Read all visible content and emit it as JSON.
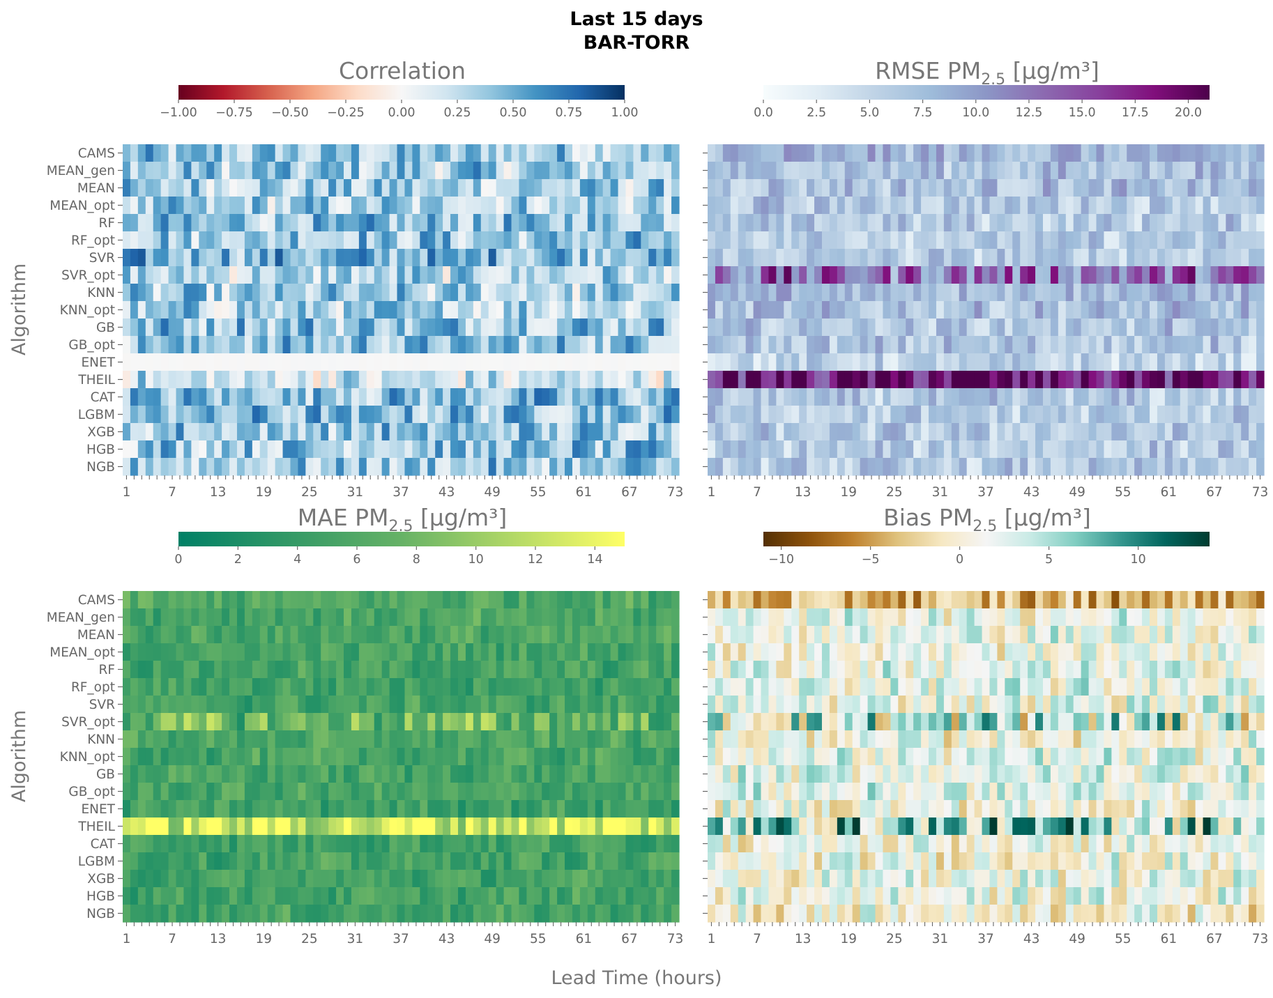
{
  "figure": {
    "title_line1": "Last 15 days",
    "title_line2": "BAR-TORR",
    "xlabel": "Lead Time (hours)",
    "ylabel": "Algorithm"
  },
  "chart_data": [
    {
      "type": "heatmap",
      "title": "Correlation",
      "colormap": "RdBu",
      "vmin": -1.0,
      "vmax": 1.0,
      "colorbar_ticks": [
        -1.0,
        -0.75,
        -0.5,
        -0.25,
        0.0,
        0.25,
        0.5,
        0.75,
        1.0
      ],
      "colorbar_tick_labels": [
        "−1.00",
        "−0.75",
        "−0.50",
        "−0.25",
        "0.00",
        "0.25",
        "0.50",
        "0.75",
        "1.00"
      ],
      "colors": [
        "#67001f",
        "#b2182b",
        "#d6604d",
        "#f4a582",
        "#fddbc7",
        "#f7f7f7",
        "#d1e5f0",
        "#92c5de",
        "#4393c3",
        "#2166ac",
        "#053061"
      ],
      "rows": [
        "CAMS",
        "MEAN_gen",
        "MEAN",
        "MEAN_opt",
        "RF",
        "RF_opt",
        "SVR",
        "SVR_opt",
        "KNN",
        "KNN_opt",
        "GB",
        "GB_opt",
        "ENET",
        "THEIL",
        "CAT",
        "LGBM",
        "XGB",
        "HGB",
        "NGB"
      ],
      "x_ticks": [
        "1",
        "7",
        "13",
        "19",
        "25",
        "31",
        "37",
        "43",
        "49",
        "55",
        "61",
        "67",
        "73"
      ],
      "x": {
        "start": 1,
        "end": 73
      },
      "row_means": [
        0.35,
        0.35,
        0.32,
        0.3,
        0.38,
        0.38,
        0.48,
        0.28,
        0.3,
        0.3,
        0.42,
        0.4,
        0.0,
        0.18,
        0.42,
        0.42,
        0.38,
        0.38,
        0.35
      ],
      "hot_rows": [],
      "special_rows": {
        "ENET": 0.0
      }
    },
    {
      "type": "heatmap",
      "title_main": "RMSE PM",
      "title_sub": "2.5",
      "title_unit": "[μg/m³]",
      "colormap": "BuPu",
      "vmin": 0.0,
      "vmax": 21.0,
      "colorbar_ticks": [
        0.0,
        2.5,
        5.0,
        7.5,
        10.0,
        12.5,
        15.0,
        17.5,
        20.0
      ],
      "colorbar_tick_labels": [
        "0.0",
        "2.5",
        "5.0",
        "7.5",
        "10.0",
        "12.5",
        "15.0",
        "17.5",
        "20.0"
      ],
      "colors": [
        "#f7fcfd",
        "#e0ecf4",
        "#bfd3e6",
        "#9ebcda",
        "#8c96c6",
        "#8c6bb1",
        "#88419d",
        "#810f7c",
        "#4d004b"
      ],
      "rows": [
        "CAMS",
        "MEAN_gen",
        "MEAN",
        "MEAN_opt",
        "RF",
        "RF_opt",
        "SVR",
        "SVR_opt",
        "KNN",
        "KNN_opt",
        "GB",
        "GB_opt",
        "ENET",
        "THEIL",
        "CAT",
        "LGBM",
        "XGB",
        "HGB",
        "NGB"
      ],
      "x_ticks": [
        "1",
        "7",
        "13",
        "19",
        "25",
        "31",
        "37",
        "43",
        "49",
        "55",
        "61",
        "67",
        "73"
      ],
      "x": {
        "start": 1,
        "end": 73
      },
      "row_means": [
        8.0,
        7.0,
        7.0,
        6.5,
        6.0,
        6.0,
        6.0,
        13.0,
        8.0,
        7.0,
        6.5,
        6.5,
        5.0,
        19.0,
        6.0,
        6.0,
        6.0,
        6.0,
        6.0
      ],
      "hot_rows": [
        "SVR_opt",
        "THEIL"
      ]
    },
    {
      "type": "heatmap",
      "title_main": "MAE PM",
      "title_sub": "2.5",
      "title_unit": "[μg/m³]",
      "colormap": "summer",
      "vmin": 0.0,
      "vmax": 15.0,
      "colorbar_ticks": [
        0,
        2,
        4,
        6,
        8,
        10,
        12,
        14
      ],
      "colorbar_tick_labels": [
        "0",
        "2",
        "4",
        "6",
        "8",
        "10",
        "12",
        "14"
      ],
      "colors": [
        "#008066",
        "#66b266",
        "#ffff66"
      ],
      "rows": [
        "CAMS",
        "MEAN_gen",
        "MEAN",
        "MEAN_opt",
        "RF",
        "RF_opt",
        "SVR",
        "SVR_opt",
        "KNN",
        "KNN_opt",
        "GB",
        "GB_opt",
        "ENET",
        "THEIL",
        "CAT",
        "LGBM",
        "XGB",
        "HGB",
        "NGB"
      ],
      "x_ticks": [
        "1",
        "7",
        "13",
        "19",
        "25",
        "31",
        "37",
        "43",
        "49",
        "55",
        "61",
        "67",
        "73"
      ],
      "x": {
        "start": 1,
        "end": 73
      },
      "row_means": [
        6.0,
        5.5,
        5.5,
        5.3,
        5.0,
        5.0,
        5.0,
        7.5,
        5.5,
        5.2,
        5.2,
        5.2,
        4.8,
        13.0,
        5.0,
        5.0,
        5.0,
        5.0,
        5.0
      ],
      "hot_rows": [
        "SVR_opt",
        "THEIL"
      ]
    },
    {
      "type": "heatmap",
      "title_main": "Bias PM",
      "title_sub": "2.5",
      "title_unit": "[μg/m³]",
      "colormap": "BrBG",
      "vmin": -11.0,
      "vmax": 14.0,
      "colorbar_ticks": [
        -10,
        -5,
        0,
        5,
        10
      ],
      "colorbar_tick_labels": [
        "−10",
        "−5",
        "0",
        "5",
        "10"
      ],
      "colors": [
        "#543005",
        "#8c510a",
        "#bf812d",
        "#dfc27d",
        "#f6e8c3",
        "#f5f5f5",
        "#c7eae5",
        "#80cdc1",
        "#35978f",
        "#01665e",
        "#003c30"
      ],
      "rows": [
        "CAMS",
        "MEAN_gen",
        "MEAN",
        "MEAN_opt",
        "RF",
        "RF_opt",
        "SVR",
        "SVR_opt",
        "KNN",
        "KNN_opt",
        "GB",
        "GB_opt",
        "ENET",
        "THEIL",
        "CAT",
        "LGBM",
        "XGB",
        "HGB",
        "NGB"
      ],
      "x_ticks": [
        "1",
        "7",
        "13",
        "19",
        "25",
        "31",
        "37",
        "43",
        "49",
        "55",
        "61",
        "67",
        "73"
      ],
      "x": {
        "start": 1,
        "end": 73
      },
      "row_means": [
        -4.0,
        2.0,
        2.0,
        1.5,
        2.0,
        2.0,
        2.0,
        3.5,
        1.0,
        2.0,
        2.5,
        2.5,
        1.0,
        6.0,
        1.0,
        1.0,
        1.5,
        1.5,
        0.5
      ],
      "hot_rows": [
        "SVR_opt",
        "THEIL"
      ]
    }
  ]
}
